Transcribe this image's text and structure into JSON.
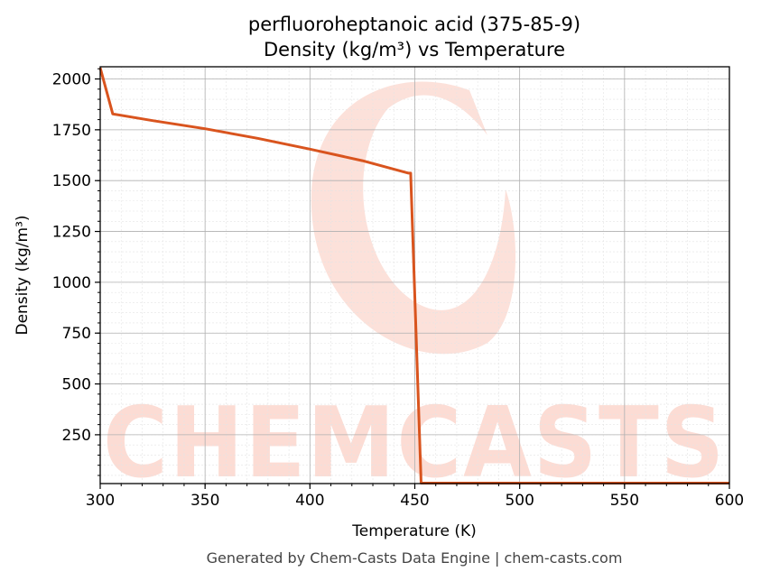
{
  "chart_data": {
    "type": "line",
    "title": "perfluoroheptanoic acid (375-85-9)",
    "subtitle": "Density (kg/m³) vs Temperature",
    "xlabel": "Temperature (K)",
    "ylabel": "Density (kg/m³)",
    "xlim": [
      300,
      600
    ],
    "ylim": [
      10,
      2060
    ],
    "x_ticks": [
      300,
      350,
      400,
      450,
      500,
      550,
      600
    ],
    "y_ticks": [
      250,
      500,
      750,
      1000,
      1250,
      1500,
      1750,
      2000
    ],
    "grid": true,
    "legend": "none",
    "line_color": "#d9541e",
    "series": [
      {
        "x": [
          300,
          306,
          325,
          350,
          375,
          400,
          425,
          447,
          448,
          453,
          480,
          520,
          560,
          600
        ],
        "values": [
          2055,
          1828,
          1795,
          1755,
          1708,
          1655,
          1598,
          1537,
          1537,
          12,
          12,
          12,
          12,
          12
        ]
      }
    ]
  },
  "watermark": {
    "text": "CHEMCASTS",
    "color": "#fcdcd4"
  },
  "footer": "Generated by Chem-Casts Data Engine | chem-casts.com"
}
